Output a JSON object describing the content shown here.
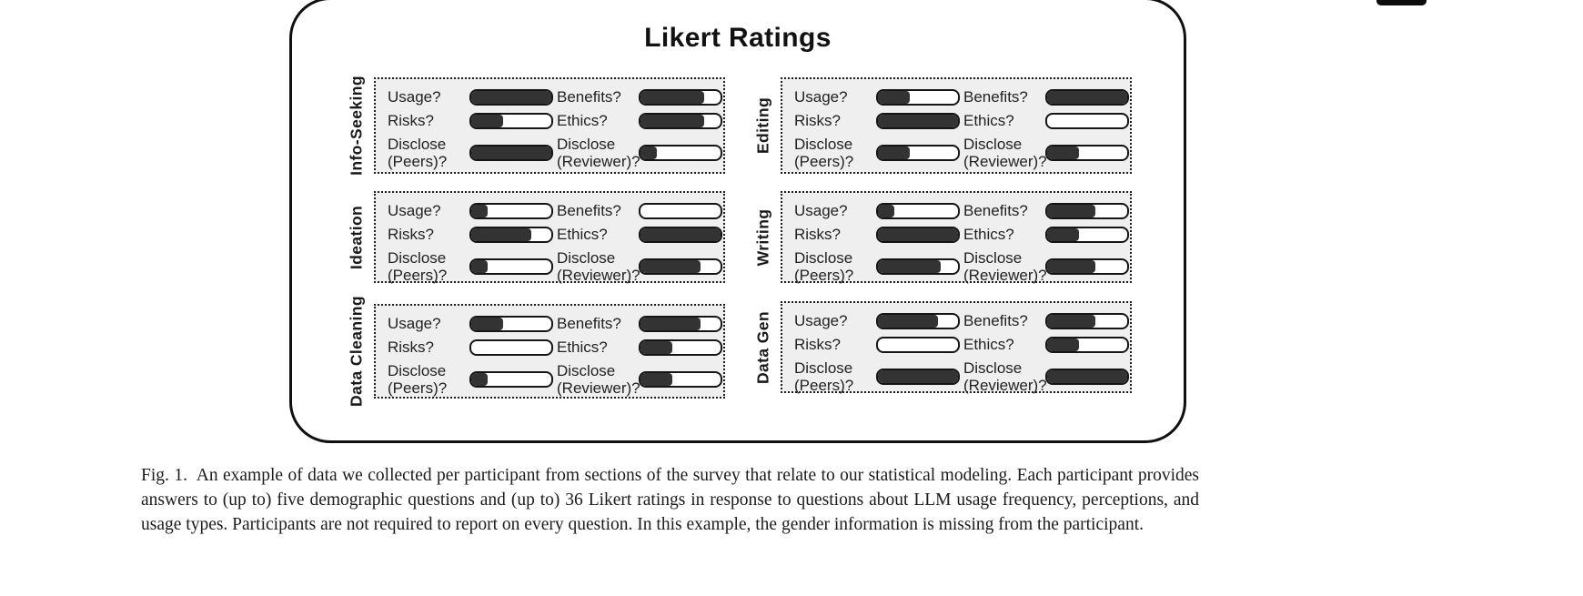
{
  "figure": {
    "title": "Likert Ratings",
    "panels": [
      {
        "label": "Info-Seeking",
        "rows": [
          {
            "q": "Usage?",
            "fill": 1.0
          },
          {
            "q": "Risks?",
            "fill": 0.4
          },
          {
            "q": "Disclose (Peers)?",
            "fill": 1.0
          },
          {
            "q": "Benefits?",
            "fill": 0.8
          },
          {
            "q": "Ethics?",
            "fill": 0.8
          },
          {
            "q": "Disclose (Reviewer)?",
            "fill": 0.2
          }
        ]
      },
      {
        "label": "Editing",
        "rows": [
          {
            "q": "Usage?",
            "fill": 0.4
          },
          {
            "q": "Risks?",
            "fill": 1.0
          },
          {
            "q": "Disclose (Peers)?",
            "fill": 0.4
          },
          {
            "q": "Benefits?",
            "fill": 1.0
          },
          {
            "q": "Ethics?",
            "fill": 0.0
          },
          {
            "q": "Disclose (Reviewer)?",
            "fill": 0.4
          }
        ]
      },
      {
        "label": "Ideation",
        "rows": [
          {
            "q": "Usage?",
            "fill": 0.2
          },
          {
            "q": "Risks?",
            "fill": 0.75
          },
          {
            "q": "Disclose (Peers)?",
            "fill": 0.2
          },
          {
            "q": "Benefits?",
            "fill": 0.0
          },
          {
            "q": "Ethics?",
            "fill": 1.0
          },
          {
            "q": "Disclose (Reviewer)?",
            "fill": 0.75
          }
        ]
      },
      {
        "label": "Writing",
        "rows": [
          {
            "q": "Usage?",
            "fill": 0.2
          },
          {
            "q": "Risks?",
            "fill": 1.0
          },
          {
            "q": "Disclose (Peers)?",
            "fill": 0.78
          },
          {
            "q": "Benefits?",
            "fill": 0.6
          },
          {
            "q": "Ethics?",
            "fill": 0.4
          },
          {
            "q": "Disclose (Reviewer)?",
            "fill": 0.6
          }
        ]
      },
      {
        "label": "Data Cleaning",
        "rows": [
          {
            "q": "Usage?",
            "fill": 0.4
          },
          {
            "q": "Risks?",
            "fill": 0.0
          },
          {
            "q": "Disclose (Peers)?",
            "fill": 0.2
          },
          {
            "q": "Benefits?",
            "fill": 0.75
          },
          {
            "q": "Ethics?",
            "fill": 0.4
          },
          {
            "q": "Disclose (Reviewer)?",
            "fill": 0.4
          }
        ]
      },
      {
        "label": "Data Gen",
        "rows": [
          {
            "q": "Usage?",
            "fill": 0.75
          },
          {
            "q": "Risks?",
            "fill": 0.0
          },
          {
            "q": "Disclose (Peers)?",
            "fill": 1.0
          },
          {
            "q": "Benefits?",
            "fill": 0.6
          },
          {
            "q": "Ethics?",
            "fill": 0.4
          },
          {
            "q": "Disclose (Reviewer)?",
            "fill": 1.0
          }
        ]
      }
    ]
  },
  "caption": {
    "text": "Fig. 1.  An example of data we collected per participant from sections of the survey that relate to our statistical modeling. Each participant provides answers to (up to) five demographic questions and (up to) 36 Likert ratings in response to questions about LLM usage frequency, perceptions, and usage types. Participants are not required to report on every question. In this example, the gender information is missing from the participant."
  },
  "colors": {
    "bar_fill": "#333333",
    "bar_border": "#151515",
    "panel_background": "#efefef",
    "box_border": "#101010"
  },
  "chart_data": {
    "type": "bar",
    "title": "Likert Ratings",
    "note": "Six panels of horizontal Likert bars; values are estimated fill fractions (0-1) of each bar.",
    "categories": [
      "Usage?",
      "Risks?",
      "Disclose (Peers)?",
      "Benefits?",
      "Ethics?",
      "Disclose (Reviewer)?"
    ],
    "series": [
      {
        "name": "Info-Seeking",
        "values": [
          1.0,
          0.4,
          1.0,
          0.8,
          0.8,
          0.2
        ]
      },
      {
        "name": "Editing",
        "values": [
          0.4,
          1.0,
          0.4,
          1.0,
          0.0,
          0.4
        ]
      },
      {
        "name": "Ideation",
        "values": [
          0.2,
          0.75,
          0.2,
          0.0,
          1.0,
          0.75
        ]
      },
      {
        "name": "Writing",
        "values": [
          0.2,
          1.0,
          0.78,
          0.6,
          0.4,
          0.6
        ]
      },
      {
        "name": "Data Cleaning",
        "values": [
          0.4,
          0.0,
          0.2,
          0.75,
          0.4,
          0.4
        ]
      },
      {
        "name": "Data Gen",
        "values": [
          0.75,
          0.0,
          1.0,
          0.6,
          0.4,
          1.0
        ]
      }
    ],
    "xlim": [
      0,
      1
    ],
    "legend_position": "none",
    "grid": false
  }
}
